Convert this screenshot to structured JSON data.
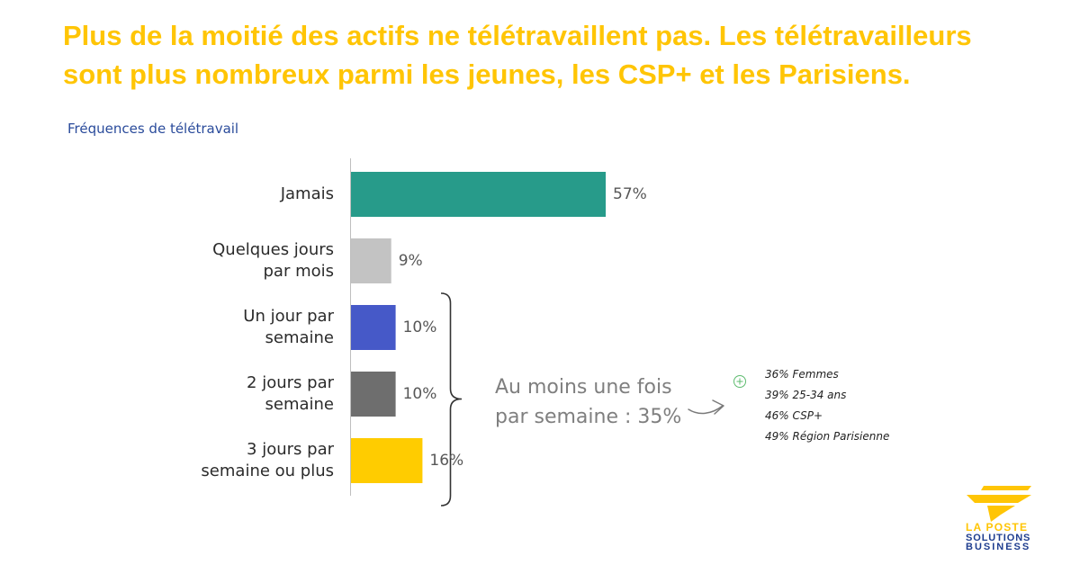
{
  "header": {
    "title_lines": [
      "Plus de la moitié des actifs ne télétravaillent pas. Les télétravailleurs",
      "sont plus nombreux parmi les jeunes, les CSP+ et les Parisiens."
    ]
  },
  "chart_data": {
    "type": "bar",
    "orientation": "horizontal",
    "title": "Fréquences de télétravail",
    "categories": [
      "Jamais",
      "Quelques jours par mois",
      "Un jour par semaine",
      "2 jours par semaine",
      "3 jours par semaine ou plus"
    ],
    "values": [
      57,
      9,
      10,
      10,
      16
    ],
    "data_labels": [
      "57%",
      "9%",
      "10%",
      "10%",
      "16%"
    ],
    "colors": [
      "#279B8A",
      "#C3C3C3",
      "#4659C8",
      "#6E6E6E",
      "#FFCC00"
    ],
    "grid": false
  },
  "annotation": {
    "summary_lines": [
      "Au moins une fois",
      "par semaine : 35%"
    ],
    "details": [
      "36% Femmes",
      "39% 25-34 ans",
      "46% CSP+",
      "49% Région Parisienne"
    ]
  },
  "icons": {
    "arrow": "arrow-right-icon",
    "plus": "plus-circle-icon",
    "logo": "la-poste-logo-icon"
  },
  "logo": {
    "name_lines": [
      "LA POSTE",
      "SOLUTIONS",
      "BUSINESS"
    ]
  },
  "colors": {
    "title": "#FFC505",
    "chart_title": "#2A4B9B",
    "annotation_text": "#7F7F7F",
    "plus_icon": "#5DBB6E",
    "logo_yellow": "#FFC505",
    "logo_blue": "#1E3D8F"
  }
}
